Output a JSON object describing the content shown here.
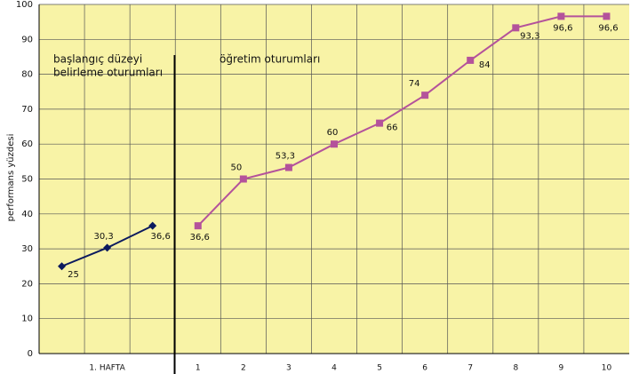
{
  "chart_data": {
    "type": "line",
    "y_label": "performans yüzdesi",
    "annotations": [
      "başlangıç düzeyi",
      "belirleme oturumları",
      "öğretim oturumları"
    ],
    "categories": [
      null,
      "1. HAFTA",
      null,
      "1",
      "2",
      "3",
      "4",
      "5",
      "6",
      "7",
      "8",
      "9",
      "10"
    ],
    "series": [
      {
        "name": "başlangıç",
        "color": "#0c1a5e",
        "marker": "diamond",
        "values": [
          25,
          30.3,
          36.6,
          null,
          null,
          null,
          null,
          null,
          null,
          null,
          null,
          null,
          null
        ],
        "value_labels": [
          "25",
          "30,3",
          "36,6",
          null,
          null,
          null,
          null,
          null,
          null,
          null,
          null,
          null,
          null
        ]
      },
      {
        "name": "öğretim",
        "color": "#b4529b",
        "marker": "square",
        "values": [
          null,
          null,
          null,
          36.6,
          50,
          53.3,
          60,
          66,
          74,
          84,
          93.3,
          96.6,
          96.6
        ],
        "value_labels": [
          null,
          null,
          null,
          "36,6",
          "50",
          "53,3",
          "60",
          "66",
          "74",
          "84",
          "93,3",
          "96,6",
          "96,6"
        ]
      }
    ],
    "ylim": [
      0,
      100
    ],
    "yticks": [
      0,
      10,
      20,
      30,
      40,
      50,
      60,
      70,
      80,
      90,
      100
    ],
    "grid": true,
    "background": "#f8f3a6"
  }
}
